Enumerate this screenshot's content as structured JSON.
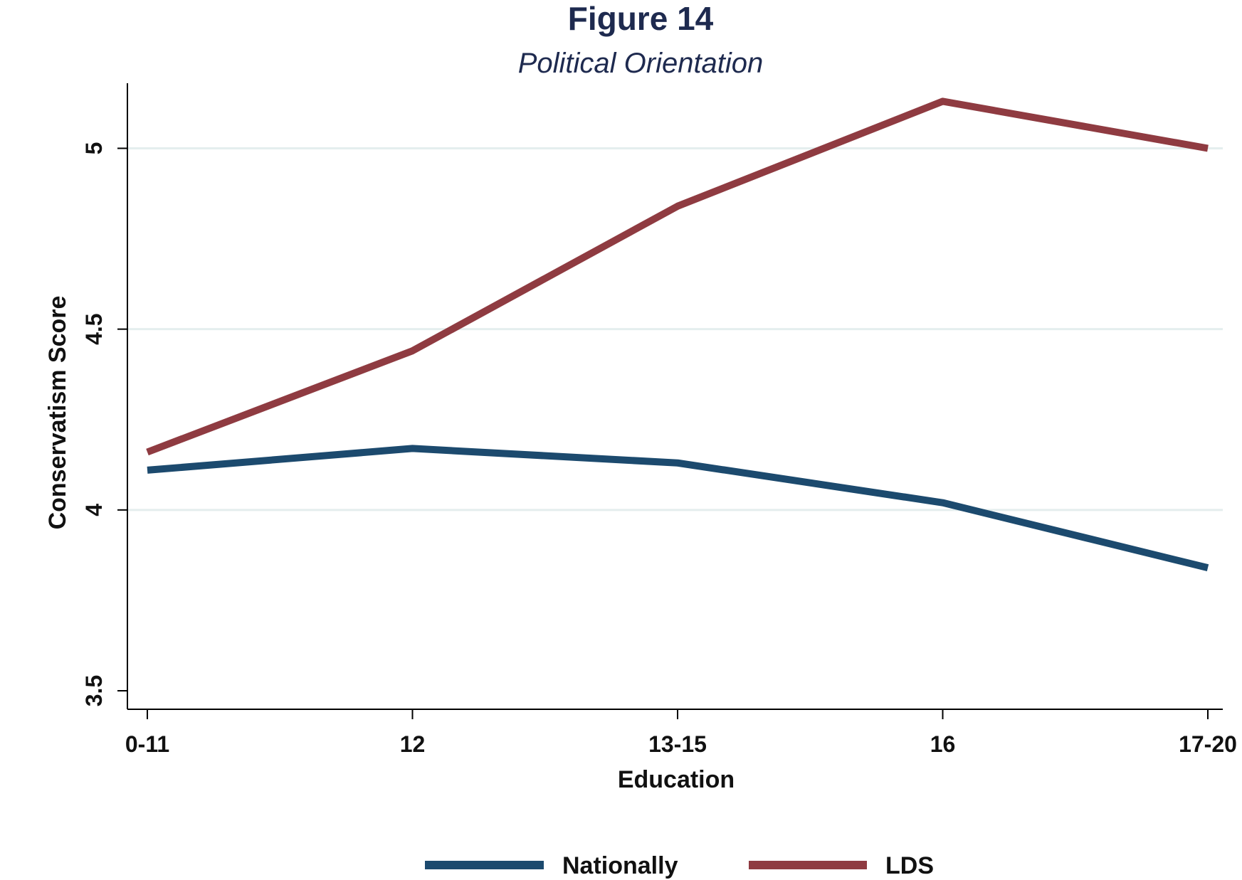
{
  "chart_data": {
    "type": "line",
    "title": "Figure 14",
    "subtitle": "Political Orientation",
    "xlabel": "Education",
    "ylabel": "Conservatism Score",
    "categories": [
      "0-11",
      "12",
      "13-15",
      "16",
      "17-20"
    ],
    "ylim": [
      3.5,
      5.18
    ],
    "yticks": [
      {
        "value": 3.5,
        "label": "3.5"
      },
      {
        "value": 4,
        "label": "4"
      },
      {
        "value": 4.5,
        "label": "4.5"
      },
      {
        "value": 5,
        "label": "5"
      }
    ],
    "grid": true,
    "legend_position": "bottom",
    "series": [
      {
        "name": "Nationally",
        "color": "#1c4a6e",
        "values": [
          4.11,
          4.17,
          4.13,
          4.02,
          3.84
        ]
      },
      {
        "name": "LDS",
        "color": "#8f3b41",
        "values": [
          4.16,
          4.44,
          4.84,
          5.13,
          5.0
        ]
      }
    ]
  }
}
